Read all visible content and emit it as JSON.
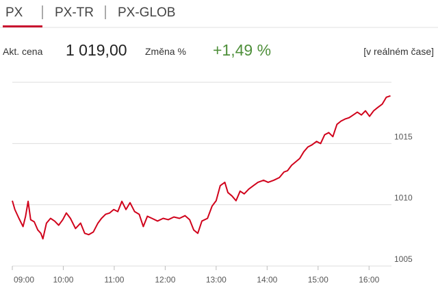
{
  "tabs": [
    "PX",
    "PX-TR",
    "PX-GLOB"
  ],
  "quote": {
    "price_label": "Akt. cena",
    "price": "1 019,00",
    "change_label": "Změna %",
    "change": "+1,49 %",
    "mode": "[v reálném čase]"
  },
  "chart_data": {
    "type": "line",
    "color": "#d0021b",
    "grid": true,
    "x": [
      9.0,
      9.05,
      9.13,
      9.21,
      9.26,
      9.31,
      9.36,
      9.43,
      9.5,
      9.56,
      9.6,
      9.67,
      9.75,
      9.83,
      9.91,
      9.99,
      10.06,
      10.14,
      10.24,
      10.34,
      10.42,
      10.5,
      10.59,
      10.68,
      10.75,
      10.83,
      10.91,
      10.99,
      11.07,
      11.15,
      11.23,
      11.31,
      11.4,
      11.49,
      11.57,
      11.65,
      11.74,
      11.85,
      11.96,
      12.06,
      12.17,
      12.28,
      12.39,
      12.48,
      12.56,
      12.64,
      12.72,
      12.83,
      12.92,
      13.0,
      13.08,
      13.17,
      13.23,
      13.31,
      13.39,
      13.47,
      13.55,
      13.64,
      13.73,
      13.82,
      13.93,
      14.02,
      14.13,
      14.24,
      14.33,
      14.4,
      14.48,
      14.56,
      14.64,
      14.72,
      14.8,
      14.88,
      14.97,
      15.05,
      15.13,
      15.21,
      15.29,
      15.37,
      15.45,
      15.53,
      15.61,
      15.69,
      15.77,
      15.85,
      15.93,
      16.01,
      16.09,
      16.17,
      16.26,
      16.34,
      16.42
    ],
    "values": [
      1010.33,
      1009.61,
      1008.89,
      1008.22,
      1009.06,
      1010.28,
      1008.78,
      1008.61,
      1007.94,
      1007.67,
      1007.22,
      1008.5,
      1008.89,
      1008.67,
      1008.33,
      1008.78,
      1009.33,
      1008.89,
      1008.06,
      1008.5,
      1007.67,
      1007.56,
      1007.78,
      1008.5,
      1008.89,
      1009.22,
      1009.33,
      1009.61,
      1009.44,
      1010.28,
      1009.61,
      1010.17,
      1009.44,
      1009.22,
      1008.22,
      1009.06,
      1008.89,
      1008.67,
      1008.89,
      1008.78,
      1009.0,
      1008.89,
      1009.11,
      1008.78,
      1007.94,
      1007.67,
      1008.67,
      1008.89,
      1009.89,
      1010.33,
      1011.56,
      1011.83,
      1011.0,
      1010.72,
      1010.33,
      1011.11,
      1010.89,
      1011.28,
      1011.56,
      1011.83,
      1012.0,
      1011.83,
      1012.0,
      1012.22,
      1012.67,
      1012.78,
      1013.22,
      1013.5,
      1013.78,
      1014.33,
      1014.72,
      1014.89,
      1015.17,
      1015.0,
      1015.72,
      1015.89,
      1015.56,
      1016.56,
      1016.83,
      1017.0,
      1017.11,
      1017.33,
      1017.56,
      1017.33,
      1017.67,
      1017.22,
      1017.67,
      1017.94,
      1018.22,
      1018.78,
      1018.89
    ],
    "xlim": [
      9,
      16.44
    ],
    "xticks": [
      {
        "value": 9,
        "label": "09:00"
      },
      {
        "value": 10,
        "label": "10:00"
      },
      {
        "value": 11,
        "label": "11:00"
      },
      {
        "value": 12,
        "label": "12:00"
      },
      {
        "value": 13,
        "label": "13:00"
      },
      {
        "value": 14,
        "label": "14:00"
      },
      {
        "value": 15,
        "label": "15:00"
      },
      {
        "value": 16,
        "label": "16:00"
      }
    ],
    "ylim": [
      1005,
      1020
    ],
    "yticks": [
      1005,
      1010,
      1015
    ]
  }
}
